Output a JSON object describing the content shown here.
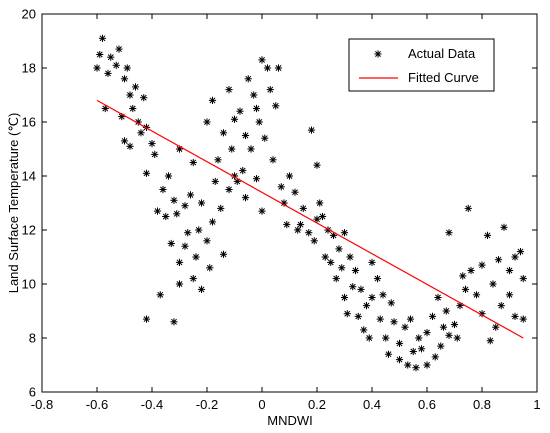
{
  "chart_data": {
    "type": "scatter",
    "xlabel": "MNDWI",
    "ylabel": "Land Surface Temperature (℃)",
    "xlim": [
      -0.8,
      1.0
    ],
    "ylim": [
      6,
      20
    ],
    "x_ticks": [
      "-0.8",
      "-0.6",
      "-0.4",
      "-0.2",
      "0",
      "0.2",
      "0.4",
      "0.6",
      "0.8",
      "1"
    ],
    "y_ticks": [
      "6",
      "8",
      "10",
      "12",
      "14",
      "16",
      "18",
      "20"
    ],
    "legend_position": "top-right",
    "legend": {
      "actual_label": "Actual Data",
      "fitted_label": "Fitted Curve"
    },
    "series": [
      {
        "name": "Actual Data",
        "marker": "*",
        "color": "#000000",
        "points": [
          [
            -0.6,
            18.0
          ],
          [
            -0.59,
            18.5
          ],
          [
            -0.58,
            19.1
          ],
          [
            -0.56,
            17.8
          ],
          [
            -0.55,
            18.4
          ],
          [
            -0.53,
            18.1
          ],
          [
            -0.52,
            18.7
          ],
          [
            -0.5,
            17.6
          ],
          [
            -0.49,
            18.0
          ],
          [
            -0.48,
            17.0
          ],
          [
            -0.51,
            16.2
          ],
          [
            -0.47,
            16.5
          ],
          [
            -0.45,
            16.0
          ],
          [
            -0.44,
            15.6
          ],
          [
            -0.5,
            15.3
          ],
          [
            -0.48,
            15.1
          ],
          [
            -0.42,
            15.8
          ],
          [
            -0.4,
            15.2
          ],
          [
            -0.42,
            14.1
          ],
          [
            -0.36,
            13.5
          ],
          [
            -0.38,
            12.7
          ],
          [
            -0.35,
            12.5
          ],
          [
            -0.33,
            11.5
          ],
          [
            -0.3,
            10.8
          ],
          [
            -0.31,
            12.6
          ],
          [
            -0.28,
            11.4
          ],
          [
            -0.25,
            10.2
          ],
          [
            -0.22,
            9.8
          ],
          [
            -0.37,
            9.6
          ],
          [
            -0.32,
            8.6
          ],
          [
            -0.42,
            8.7
          ],
          [
            -0.3,
            10.0
          ],
          [
            -0.2,
            11.6
          ],
          [
            -0.18,
            12.3
          ],
          [
            -0.15,
            12.8
          ],
          [
            -0.14,
            11.1
          ],
          [
            -0.12,
            13.5
          ],
          [
            -0.1,
            14.0
          ],
          [
            -0.22,
            13.0
          ],
          [
            -0.25,
            14.5
          ],
          [
            -0.3,
            15.0
          ],
          [
            -0.2,
            16.0
          ],
          [
            -0.18,
            16.8
          ],
          [
            -0.12,
            17.2
          ],
          [
            -0.08,
            16.4
          ],
          [
            -0.06,
            15.5
          ],
          [
            -0.05,
            17.6
          ],
          [
            -0.03,
            17.0
          ],
          [
            -0.02,
            16.5
          ],
          [
            0.0,
            18.3
          ],
          [
            0.02,
            18.0
          ],
          [
            0.03,
            17.2
          ],
          [
            -0.01,
            16.0
          ],
          [
            0.01,
            15.4
          ],
          [
            -0.04,
            15.0
          ],
          [
            0.04,
            14.6
          ],
          [
            0.05,
            16.6
          ],
          [
            0.06,
            18.0
          ],
          [
            -0.07,
            14.2
          ],
          [
            -0.09,
            13.8
          ],
          [
            0.07,
            13.6
          ],
          [
            0.08,
            13.0
          ],
          [
            0.1,
            14.0
          ],
          [
            0.12,
            13.4
          ],
          [
            0.15,
            12.8
          ],
          [
            0.18,
            15.7
          ],
          [
            0.2,
            14.4
          ],
          [
            0.21,
            13.0
          ],
          [
            0.22,
            12.5
          ],
          [
            0.24,
            12.0
          ],
          [
            0.14,
            12.2
          ],
          [
            0.17,
            11.9
          ],
          [
            0.19,
            11.6
          ],
          [
            0.26,
            11.8
          ],
          [
            0.28,
            11.3
          ],
          [
            0.3,
            11.9
          ],
          [
            0.32,
            11.0
          ],
          [
            0.25,
            10.8
          ],
          [
            0.27,
            10.2
          ],
          [
            0.3,
            9.5
          ],
          [
            0.31,
            8.9
          ],
          [
            0.34,
            10.5
          ],
          [
            0.36,
            9.8
          ],
          [
            0.38,
            9.2
          ],
          [
            0.4,
            10.8
          ],
          [
            0.42,
            10.2
          ],
          [
            0.35,
            8.8
          ],
          [
            0.37,
            8.3
          ],
          [
            0.4,
            9.5
          ],
          [
            0.43,
            8.7
          ],
          [
            0.45,
            8.0
          ],
          [
            0.47,
            9.3
          ],
          [
            0.48,
            8.6
          ],
          [
            0.5,
            7.8
          ],
          [
            0.52,
            8.4
          ],
          [
            0.5,
            7.2
          ],
          [
            0.53,
            7.0
          ],
          [
            0.55,
            7.5
          ],
          [
            0.56,
            6.9
          ],
          [
            0.58,
            7.6
          ],
          [
            0.6,
            7.0
          ],
          [
            0.6,
            8.2
          ],
          [
            0.62,
            8.8
          ],
          [
            0.64,
            9.5
          ],
          [
            0.66,
            8.4
          ],
          [
            0.65,
            7.7
          ],
          [
            0.68,
            8.1
          ],
          [
            0.7,
            8.5
          ],
          [
            0.68,
            11.9
          ],
          [
            0.72,
            9.2
          ],
          [
            0.73,
            10.3
          ],
          [
            0.75,
            12.8
          ],
          [
            0.76,
            10.5
          ],
          [
            0.78,
            9.6
          ],
          [
            0.8,
            10.7
          ],
          [
            0.8,
            8.9
          ],
          [
            0.82,
            11.8
          ],
          [
            0.84,
            10.0
          ],
          [
            0.85,
            8.4
          ],
          [
            0.86,
            10.9
          ],
          [
            0.88,
            12.1
          ],
          [
            0.87,
            9.2
          ],
          [
            0.9,
            9.6
          ],
          [
            0.9,
            10.5
          ],
          [
            0.92,
            11.0
          ],
          [
            0.92,
            8.8
          ],
          [
            0.94,
            11.2
          ],
          [
            0.95,
            10.2
          ],
          [
            0.95,
            8.7
          ],
          [
            0.83,
            7.9
          ],
          [
            -0.26,
            13.3
          ],
          [
            -0.23,
            12.0
          ],
          [
            -0.28,
            12.9
          ],
          [
            -0.16,
            14.6
          ],
          [
            -0.14,
            15.6
          ],
          [
            -0.1,
            16.1
          ],
          [
            -0.11,
            15.0
          ],
          [
            -0.06,
            13.2
          ],
          [
            -0.02,
            13.9
          ],
          [
            0.0,
            12.7
          ],
          [
            0.09,
            12.2
          ],
          [
            0.13,
            12.0
          ],
          [
            0.2,
            12.4
          ],
          [
            0.23,
            11.0
          ],
          [
            0.29,
            10.6
          ],
          [
            0.33,
            9.9
          ],
          [
            0.39,
            8.0
          ],
          [
            0.44,
            9.6
          ],
          [
            0.46,
            7.4
          ],
          [
            0.54,
            8.7
          ],
          [
            0.57,
            8.0
          ],
          [
            0.63,
            7.3
          ],
          [
            0.67,
            9.0
          ],
          [
            0.71,
            8.0
          ],
          [
            0.74,
            9.8
          ],
          [
            -0.57,
            16.5
          ],
          [
            -0.46,
            17.3
          ],
          [
            -0.43,
            16.9
          ],
          [
            -0.39,
            14.8
          ],
          [
            -0.34,
            14.0
          ],
          [
            -0.32,
            13.1
          ],
          [
            -0.27,
            11.9
          ],
          [
            -0.24,
            11.0
          ],
          [
            -0.19,
            10.6
          ],
          [
            -0.17,
            13.8
          ]
        ]
      },
      {
        "name": "Fitted Curve",
        "type": "line",
        "color": "#ff0000",
        "points": [
          [
            -0.6,
            16.8
          ],
          [
            0.95,
            8.0
          ]
        ]
      }
    ]
  }
}
